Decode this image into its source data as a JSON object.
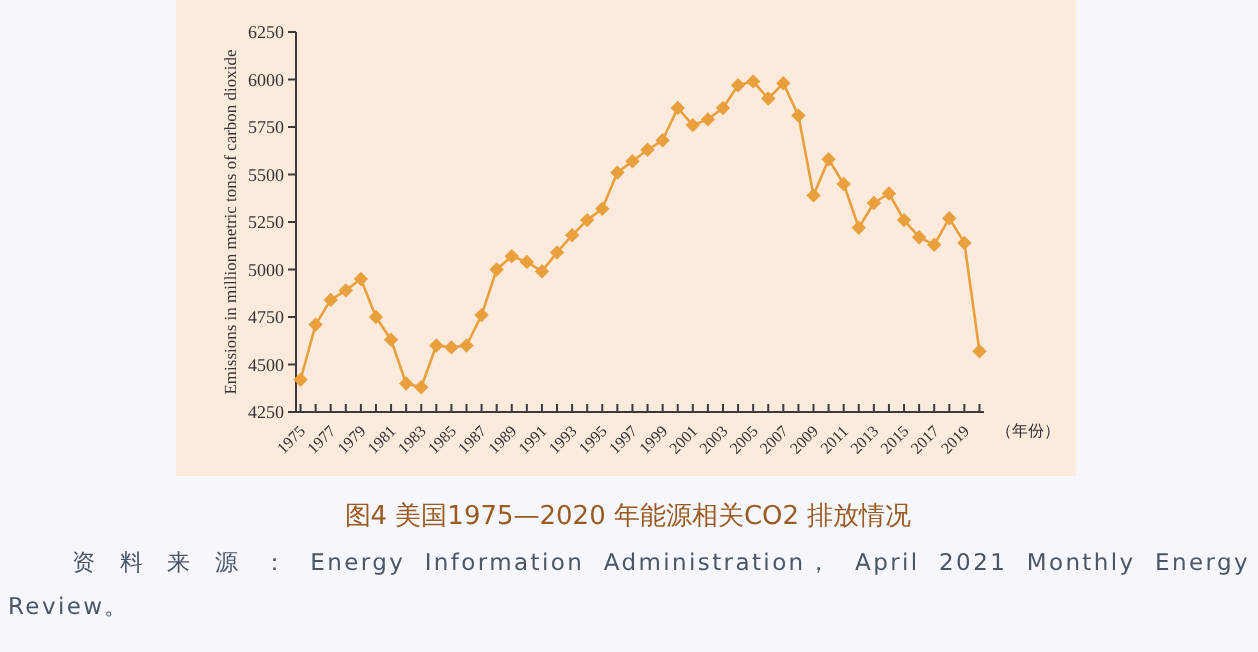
{
  "chart_data": {
    "type": "line",
    "title": "图4 美国1975—2020 年能源相关CO2 排放情况",
    "ylabel": "Emissions in million metric tons of carbon dioxide",
    "xlabel": "（年份）",
    "annotations": [
      "资 料 来 源 ： Energy Information Administration， April 2021 Monthly Energy Review。"
    ],
    "x": [
      1975,
      1976,
      1977,
      1978,
      1979,
      1980,
      1981,
      1982,
      1983,
      1984,
      1985,
      1986,
      1987,
      1988,
      1989,
      1990,
      1991,
      1992,
      1993,
      1994,
      1995,
      1996,
      1997,
      1998,
      1999,
      2000,
      2001,
      2002,
      2003,
      2004,
      2005,
      2006,
      2007,
      2008,
      2009,
      2010,
      2011,
      2012,
      2013,
      2014,
      2015,
      2016,
      2017,
      2018,
      2019,
      2020
    ],
    "series": [
      {
        "color": "#e9a03c",
        "values": [
          4420,
          4710,
          4840,
          4890,
          4950,
          4750,
          4630,
          4400,
          4380,
          4600,
          4590,
          4600,
          4760,
          5000,
          5070,
          5040,
          4990,
          5090,
          5180,
          5260,
          5320,
          5510,
          5570,
          5630,
          5680,
          5850,
          5760,
          5790,
          5850,
          5970,
          5990,
          5900,
          5980,
          5810,
          5390,
          5580,
          5450,
          5220,
          5350,
          5400,
          5260,
          5170,
          5130,
          5270,
          5140,
          4570
        ]
      }
    ],
    "xlim": [
      1974.7,
      2020.3
    ],
    "ylim": [
      4250,
      6250
    ],
    "yticks": [
      4250,
      4500,
      4750,
      5000,
      5250,
      5500,
      5750,
      6000,
      6250
    ],
    "xticks": [
      1975,
      {
        "value": 1976,
        "label": null
      },
      1977,
      {
        "value": 1978,
        "label": null
      },
      1979,
      {
        "value": 1980,
        "label": null
      },
      1981,
      {
        "value": 1982,
        "label": null
      },
      1983,
      {
        "value": 1984,
        "label": null
      },
      1985,
      {
        "value": 1986,
        "label": null
      },
      1987,
      {
        "value": 1988,
        "label": null
      },
      1989,
      {
        "value": 1990,
        "label": null
      },
      1991,
      {
        "value": 1992,
        "label": null
      },
      1993,
      {
        "value": 1994,
        "label": null
      },
      1995,
      {
        "value": 1996,
        "label": null
      },
      1997,
      {
        "value": 1998,
        "label": null
      },
      1999,
      {
        "value": 2000,
        "label": null
      },
      2001,
      {
        "value": 2002,
        "label": null
      },
      2003,
      {
        "value": 2004,
        "label": null
      },
      2005,
      {
        "value": 2006,
        "label": null
      },
      2007,
      {
        "value": 2008,
        "label": null
      },
      2009,
      {
        "value": 2010,
        "label": null
      },
      2011,
      {
        "value": 2012,
        "label": null
      },
      2013,
      {
        "value": 2014,
        "label": null
      },
      2015,
      {
        "value": 2016,
        "label": null
      },
      2017,
      {
        "value": 2018,
        "label": null
      },
      2019,
      {
        "value": 2020,
        "label": null
      }
    ],
    "marker": "diamond",
    "line_style": "solid",
    "grid": false
  }
}
